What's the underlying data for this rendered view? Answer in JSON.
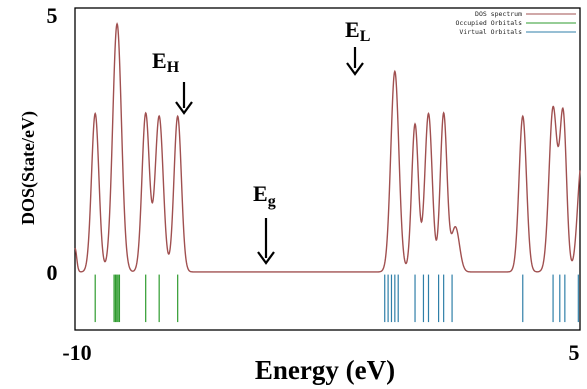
{
  "chart_data": {
    "type": "line",
    "xlabel": "Energy (eV)",
    "ylabel": "DOS(State/eV)",
    "xlim": [
      -10,
      5
    ],
    "ylim": [
      -1.1,
      5
    ],
    "x_ticks": [
      {
        "value": -10,
        "label": "-10"
      },
      {
        "value": 5,
        "label": "5"
      }
    ],
    "y_ticks": [
      {
        "value": 0,
        "label": "0"
      },
      {
        "value": 5,
        "label": "5"
      }
    ],
    "grid": false,
    "legend_position": "top-right",
    "series": [
      {
        "name": "DOS spectrum",
        "color": "#a05050",
        "peaks": [
          {
            "e": -9.4,
            "h": 3.0,
            "w": 0.11
          },
          {
            "e": -8.75,
            "h": 4.7,
            "w": 0.13
          },
          {
            "e": -7.9,
            "h": 3.0,
            "w": 0.11
          },
          {
            "e": -7.5,
            "h": 2.95,
            "w": 0.12
          },
          {
            "e": -6.95,
            "h": 2.95,
            "w": 0.11
          },
          {
            "e": -4.4,
            "h": 0.0,
            "w": 0.1
          },
          {
            "e": -0.5,
            "h": 3.8,
            "w": 0.12
          },
          {
            "e": 0.1,
            "h": 2.8,
            "w": 0.1
          },
          {
            "e": 0.5,
            "h": 3.0,
            "w": 0.11
          },
          {
            "e": 0.95,
            "h": 3.0,
            "w": 0.1
          },
          {
            "e": 1.3,
            "h": 0.85,
            "w": 0.12
          },
          {
            "e": 3.3,
            "h": 2.95,
            "w": 0.11
          },
          {
            "e": 4.2,
            "h": 3.1,
            "w": 0.12
          },
          {
            "e": 4.5,
            "h": 2.95,
            "w": 0.1
          },
          {
            "e": 5.05,
            "h": 2.1,
            "w": 0.12
          }
        ],
        "left_edge_value": 0.45
      },
      {
        "name": "Occupied Orbitals",
        "color": "#2e9b2e",
        "levels": [
          -9.4,
          -8.84,
          -8.8,
          -8.76,
          -8.72,
          -8.68,
          -7.9,
          -7.5,
          -6.95
        ]
      },
      {
        "name": "Virtual Orbitals",
        "color": "#2f7fa8",
        "levels": [
          -0.8,
          -0.7,
          -0.6,
          -0.5,
          -0.4,
          0.1,
          0.35,
          0.5,
          0.8,
          0.95,
          1.2,
          3.3,
          4.2,
          4.4,
          4.55,
          4.95
        ]
      }
    ],
    "annotations": [
      {
        "label_main": "E",
        "label_sub": "H",
        "x": -6.95
      },
      {
        "label_main": "E",
        "label_sub": "g",
        "x": -4.4
      },
      {
        "label_main": "E",
        "label_sub": "L",
        "x": -0.5
      }
    ]
  }
}
